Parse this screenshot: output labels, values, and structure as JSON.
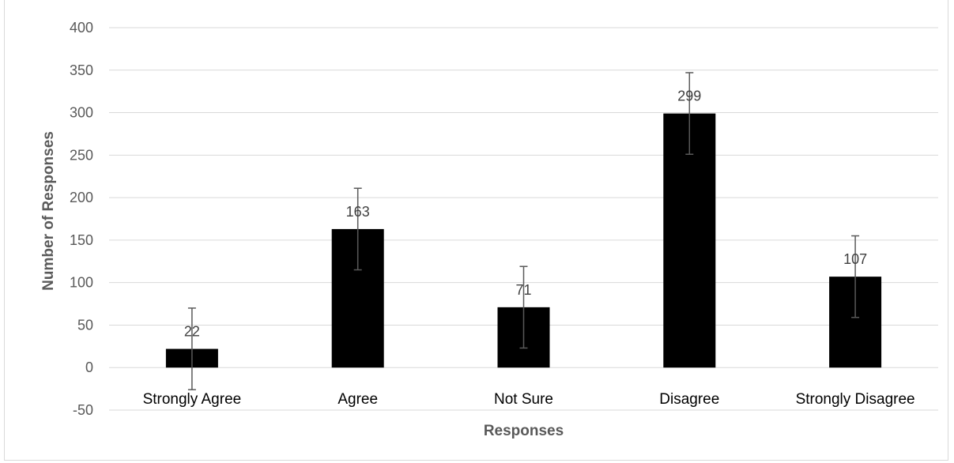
{
  "chart_data": {
    "type": "bar",
    "title": "",
    "categories": [
      "Strongly Agree",
      "Agree",
      "Not Sure",
      "Disagree",
      "Strongly Disagree"
    ],
    "values": [
      22,
      163,
      71,
      299,
      107
    ],
    "data_labels": [
      "22",
      "163",
      "71",
      "299",
      "107"
    ],
    "error_bars": {
      "plus_minus": 48
    },
    "xlabel": "Responses",
    "ylabel": "Number of Responses",
    "ylim": [
      -50,
      400
    ],
    "yticks": [
      -50,
      0,
      50,
      100,
      150,
      200,
      250,
      300,
      350,
      400
    ],
    "grid": true,
    "legend": "none",
    "colors": {
      "bar": "#000000",
      "grid": "#d9d9d9",
      "error_bar": "#595959"
    }
  }
}
